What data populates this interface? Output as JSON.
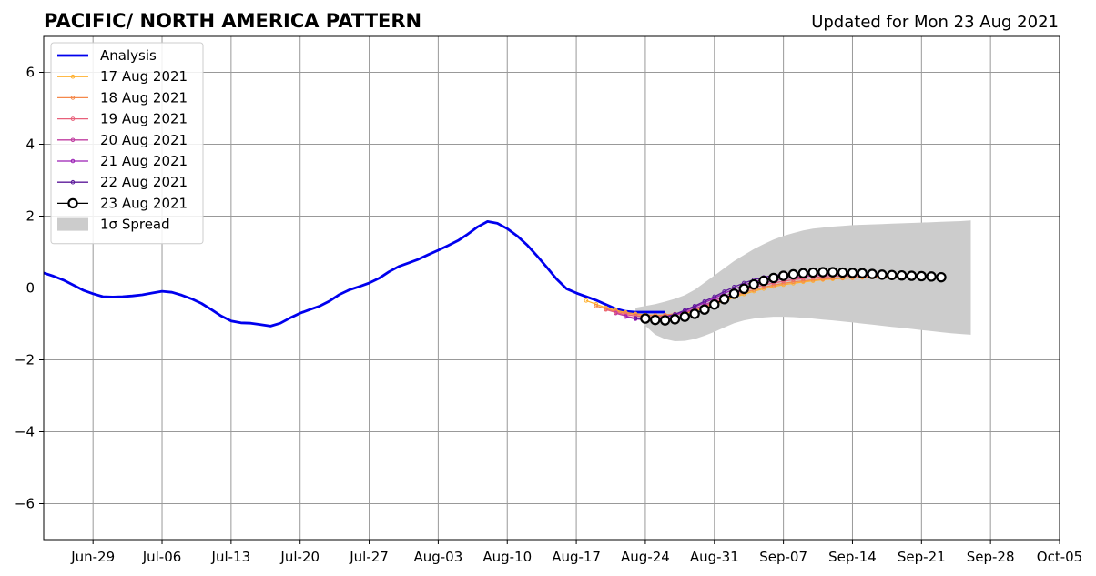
{
  "chart_data": {
    "type": "line",
    "title": "PACIFIC/ NORTH AMERICA PATTERN",
    "subtitle": "Updated for Mon 23 Aug 2021",
    "xlabel": "",
    "ylabel": "",
    "x_range": [
      "2021-06-24",
      "2021-10-05"
    ],
    "ylim": [
      -7,
      7
    ],
    "grid": true,
    "legend_position": "top-left",
    "xticks": [
      {
        "date": "2021-06-29",
        "label": "Jun-29"
      },
      {
        "date": "2021-07-06",
        "label": "Jul-06"
      },
      {
        "date": "2021-07-13",
        "label": "Jul-13"
      },
      {
        "date": "2021-07-20",
        "label": "Jul-20"
      },
      {
        "date": "2021-07-27",
        "label": "Jul-27"
      },
      {
        "date": "2021-08-03",
        "label": "Aug-03"
      },
      {
        "date": "2021-08-10",
        "label": "Aug-10"
      },
      {
        "date": "2021-08-17",
        "label": "Aug-17"
      },
      {
        "date": "2021-08-24",
        "label": "Aug-24"
      },
      {
        "date": "2021-08-31",
        "label": "Aug-31"
      },
      {
        "date": "2021-09-07",
        "label": "Sep-07"
      },
      {
        "date": "2021-09-14",
        "label": "Sep-14"
      },
      {
        "date": "2021-09-21",
        "label": "Sep-21"
      },
      {
        "date": "2021-09-28",
        "label": "Sep-28"
      },
      {
        "date": "2021-10-05",
        "label": "Oct-05"
      }
    ],
    "yticks": [
      {
        "value": 6,
        "label": "6"
      },
      {
        "value": 4,
        "label": "4"
      },
      {
        "value": 2,
        "label": "2"
      },
      {
        "value": 0,
        "label": "0"
      },
      {
        "value": -2,
        "label": "−2"
      },
      {
        "value": -4,
        "label": "−4"
      },
      {
        "value": -6,
        "label": "−6"
      }
    ],
    "series": [
      {
        "name": "Analysis",
        "color": "#0000ee",
        "marker": "none",
        "start_date": "2021-06-24",
        "values": [
          0.42,
          0.33,
          0.22,
          0.08,
          -0.06,
          -0.16,
          -0.24,
          -0.25,
          -0.24,
          -0.22,
          -0.19,
          -0.14,
          -0.09,
          -0.12,
          -0.2,
          -0.3,
          -0.43,
          -0.6,
          -0.78,
          -0.92,
          -0.97,
          -0.98,
          -1.02,
          -1.06,
          -0.98,
          -0.83,
          -0.7,
          -0.6,
          -0.5,
          -0.36,
          -0.18,
          -0.05,
          0.04,
          0.14,
          0.27,
          0.45,
          0.6,
          0.7,
          0.8,
          0.93,
          1.05,
          1.18,
          1.32,
          1.5,
          1.7,
          1.85,
          1.8,
          1.65,
          1.45,
          1.2,
          0.9,
          0.58,
          0.25,
          -0.02,
          -0.14,
          -0.24,
          -0.34,
          -0.46,
          -0.58,
          -0.65,
          -0.67,
          -0.67,
          -0.67,
          -0.67
        ]
      },
      {
        "name": "17 Aug 2021",
        "color": "#ffb02e",
        "marker": "dot",
        "start_date": "2021-08-18",
        "values": [
          -0.35,
          -0.45,
          -0.55,
          -0.62,
          -0.68,
          -0.72,
          -0.75,
          -0.76,
          -0.76,
          -0.74,
          -0.7,
          -0.64,
          -0.56,
          -0.46,
          -0.36,
          -0.26,
          -0.17,
          -0.09,
          -0.02,
          0.04,
          0.09,
          0.13,
          0.17,
          0.2,
          0.23,
          0.25,
          0.27,
          0.28,
          0.29,
          0.3,
          0.31,
          0.31,
          0.31,
          0.31,
          0.31
        ]
      },
      {
        "name": "18 Aug 2021",
        "color": "#f5884a",
        "marker": "dot",
        "start_date": "2021-08-19",
        "values": [
          -0.5,
          -0.58,
          -0.65,
          -0.7,
          -0.74,
          -0.76,
          -0.76,
          -0.75,
          -0.72,
          -0.67,
          -0.6,
          -0.52,
          -0.42,
          -0.32,
          -0.22,
          -0.13,
          -0.05,
          0.02,
          0.08,
          0.13,
          0.17,
          0.2,
          0.23,
          0.25,
          0.27,
          0.28,
          0.29,
          0.3,
          0.31,
          0.31,
          0.32,
          0.32,
          0.32,
          0.32
        ]
      },
      {
        "name": "19 Aug 2021",
        "color": "#e8607a",
        "marker": "dot",
        "start_date": "2021-08-20",
        "values": [
          -0.6,
          -0.68,
          -0.74,
          -0.78,
          -0.8,
          -0.8,
          -0.78,
          -0.74,
          -0.68,
          -0.6,
          -0.5,
          -0.4,
          -0.29,
          -0.18,
          -0.08,
          0.01,
          0.08,
          0.14,
          0.19,
          0.23,
          0.26,
          0.29,
          0.31,
          0.32,
          0.33,
          0.34,
          0.34,
          0.34,
          0.34,
          0.34,
          0.34,
          0.34,
          0.34
        ]
      },
      {
        "name": "20 Aug 2021",
        "color": "#c03da0",
        "marker": "dot",
        "start_date": "2021-08-21",
        "values": [
          -0.7,
          -0.78,
          -0.84,
          -0.86,
          -0.85,
          -0.82,
          -0.76,
          -0.68,
          -0.58,
          -0.47,
          -0.35,
          -0.23,
          -0.12,
          -0.02,
          0.07,
          0.14,
          0.2,
          0.25,
          0.29,
          0.32,
          0.34,
          0.36,
          0.37,
          0.38,
          0.38,
          0.38,
          0.38,
          0.38,
          0.37,
          0.37,
          0.36,
          0.36
        ]
      },
      {
        "name": "21 Aug 2021",
        "color": "#9a1eb5",
        "marker": "dot",
        "start_date": "2021-08-22",
        "values": [
          -0.8,
          -0.86,
          -0.88,
          -0.86,
          -0.81,
          -0.74,
          -0.64,
          -0.53,
          -0.41,
          -0.28,
          -0.15,
          -0.03,
          0.08,
          0.17,
          0.24,
          0.3,
          0.34,
          0.37,
          0.39,
          0.4,
          0.41,
          0.41,
          0.41,
          0.41,
          0.4,
          0.39,
          0.38,
          0.37,
          0.36,
          0.35,
          0.35
        ]
      },
      {
        "name": "22 Aug 2021",
        "color": "#5c1a9a",
        "marker": "dot",
        "start_date": "2021-08-23",
        "values": [
          -0.84,
          -0.87,
          -0.86,
          -0.81,
          -0.73,
          -0.62,
          -0.5,
          -0.37,
          -0.24,
          -0.1,
          0.03,
          0.14,
          0.23,
          0.3,
          0.35,
          0.38,
          0.4,
          0.41,
          0.42,
          0.42,
          0.42,
          0.41,
          0.4,
          0.39,
          0.38,
          0.37,
          0.36,
          0.35,
          0.34,
          0.34
        ]
      },
      {
        "name": "23 Aug 2021",
        "color": "#000000",
        "marker": "open-circle",
        "start_date": "2021-08-24",
        "values": [
          -0.85,
          -0.89,
          -0.9,
          -0.87,
          -0.8,
          -0.72,
          -0.6,
          -0.46,
          -0.31,
          -0.16,
          -0.02,
          0.1,
          0.2,
          0.28,
          0.34,
          0.38,
          0.41,
          0.43,
          0.44,
          0.44,
          0.43,
          0.42,
          0.41,
          0.39,
          0.37,
          0.36,
          0.35,
          0.34,
          0.33,
          0.32,
          0.3
        ]
      }
    ],
    "spread": {
      "name": "1σ Spread",
      "color": "#cccccc",
      "start_date": "2021-08-23",
      "upper": [
        -0.55,
        -0.5,
        -0.45,
        -0.38,
        -0.3,
        -0.2,
        -0.05,
        0.15,
        0.35,
        0.55,
        0.75,
        0.92,
        1.08,
        1.22,
        1.35,
        1.45,
        1.53,
        1.6,
        1.65,
        1.68,
        1.71,
        1.73,
        1.75,
        1.76,
        1.77,
        1.78,
        1.79,
        1.8,
        1.81,
        1.82,
        1.83,
        1.84,
        1.85,
        1.86,
        1.88
      ],
      "lower": [
        -0.75,
        -1.05,
        -1.3,
        -1.42,
        -1.48,
        -1.47,
        -1.42,
        -1.33,
        -1.22,
        -1.1,
        -0.98,
        -0.9,
        -0.85,
        -0.82,
        -0.8,
        -0.8,
        -0.81,
        -0.83,
        -0.85,
        -0.88,
        -0.9,
        -0.93,
        -0.96,
        -0.99,
        -1.02,
        -1.05,
        -1.08,
        -1.11,
        -1.14,
        -1.17,
        -1.2,
        -1.23,
        -1.26,
        -1.28,
        -1.3
      ]
    }
  }
}
